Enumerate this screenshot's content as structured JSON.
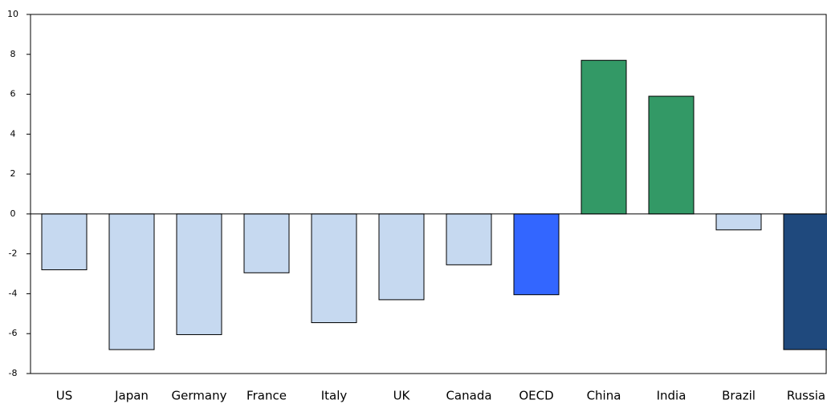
{
  "chart_data": {
    "type": "bar",
    "categories": [
      "US",
      "Japan",
      "Germany",
      "France",
      "Italy",
      "UK",
      "Canada",
      "OECD",
      "China",
      "India",
      "Brazil",
      "Russia"
    ],
    "values": [
      -2.8,
      -6.8,
      -6.05,
      -2.95,
      -5.45,
      -4.3,
      -2.55,
      -4.05,
      7.7,
      5.9,
      -0.8,
      -6.8
    ],
    "colors": [
      "#c6d9f0",
      "#c6d9f0",
      "#c6d9f0",
      "#c6d9f0",
      "#c6d9f0",
      "#c6d9f0",
      "#c6d9f0",
      "#3366ff",
      "#339966",
      "#339966",
      "#c6d9f0",
      "#1f497d"
    ],
    "ylim": [
      -8,
      10
    ],
    "yticks": [
      -8,
      -6,
      -4,
      -2,
      0,
      2,
      4,
      6,
      8,
      10
    ],
    "grid": false
  }
}
